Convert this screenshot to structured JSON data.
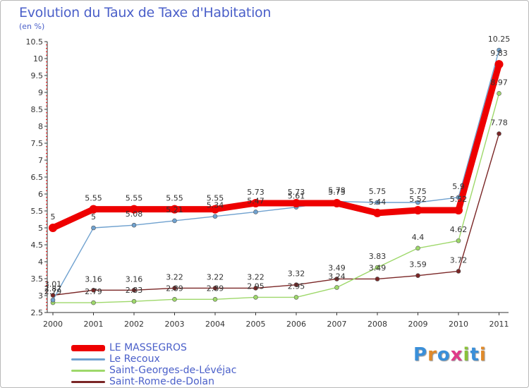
{
  "header": {
    "title": "Evolution du Taux de Taxe d'Habitation",
    "subtitle": "(en %)"
  },
  "brand": {
    "text": "Proxiti",
    "letter_colors": [
      "#3a8fd9",
      "#e08a2a",
      "#3a8fd9",
      "#e03a8a",
      "#8ac23a",
      "#3a8fd9",
      "#e08a2a"
    ]
  },
  "chart_data": {
    "type": "line",
    "x": [
      "2000",
      "2001",
      "2002",
      "2003",
      "2004",
      "2005",
      "2006",
      "2007",
      "2008",
      "2009",
      "2010",
      "2011"
    ],
    "ylim": [
      2.5,
      10.5
    ],
    "yticks": [
      "2.5",
      "3",
      "3.5",
      "4",
      "4.5",
      "5",
      "5.5",
      "6",
      "6.5",
      "7",
      "7.5",
      "8",
      "8.5",
      "9",
      "9.5",
      "10",
      "10.5"
    ],
    "grid": false,
    "legend_position": "bottom-left",
    "series": [
      {
        "name": "LE MASSEGROS",
        "color": "#ee0000",
        "values": [
          5.0,
          5.55,
          5.55,
          5.55,
          5.55,
          5.73,
          5.73,
          5.73,
          5.44,
          5.52,
          5.52,
          9.83
        ],
        "labels": [
          "5",
          "5.55",
          "5.55",
          "5.55",
          "5.55",
          "5.73",
          "5.73",
          "5.73",
          "5.44",
          "5.52",
          "5.52",
          "9.83"
        ]
      },
      {
        "name": "Le Recoux",
        "color": "#6fa1cf",
        "values": [
          2.87,
          5.0,
          5.08,
          5.21,
          5.34,
          5.47,
          5.61,
          5.78,
          5.75,
          5.75,
          5.9,
          10.25
        ],
        "labels": [
          "2.87",
          "5",
          "5.08",
          "5.21",
          "5.34",
          "5.47",
          "5.61",
          "5.78",
          "5.75",
          "5.75",
          "5.9",
          "10.25"
        ]
      },
      {
        "name": "Saint-Georges-de-Lévéjac",
        "color": "#9ed86a",
        "values": [
          2.79,
          2.79,
          2.83,
          2.89,
          2.89,
          2.95,
          2.95,
          3.24,
          3.83,
          4.4,
          4.62,
          8.97
        ],
        "labels": [
          "2.79",
          "2.79",
          "2.83",
          "2.89",
          "2.89",
          "2.95",
          "2.95",
          "3.24",
          "3.83",
          "4.4",
          "4.62",
          "8.97"
        ]
      },
      {
        "name": "Saint-Rome-de-Dolan",
        "color": "#7a2626",
        "values": [
          3.01,
          3.16,
          3.16,
          3.22,
          3.22,
          3.22,
          3.32,
          3.49,
          3.49,
          3.59,
          3.72,
          7.78
        ],
        "labels": [
          "3.01",
          "3.16",
          "3.16",
          "3.22",
          "3.22",
          "3.22",
          "3.32",
          "3.49",
          "3.49",
          "3.59",
          "3.72",
          "7.78"
        ]
      }
    ]
  }
}
